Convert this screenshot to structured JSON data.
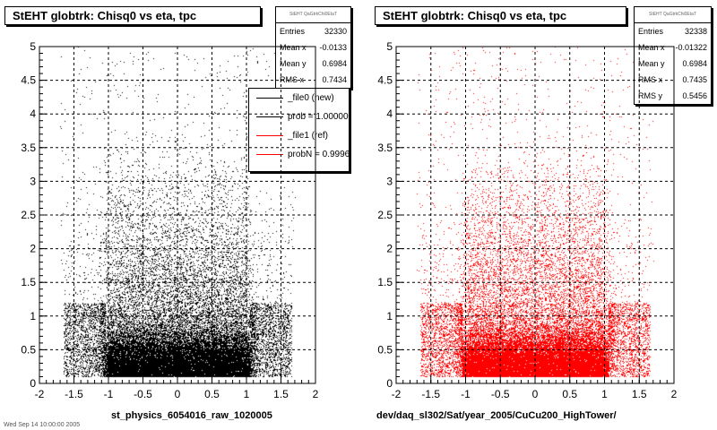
{
  "chart_data": [
    {
      "type": "scatter",
      "title": "StEHT globtrk: Chisq0 vs eta, tpc",
      "xlabel": "st_physics_6054016_raw_1020005",
      "ylabel": "",
      "xlim": [
        -2,
        2
      ],
      "ylim": [
        0,
        5
      ],
      "x_ticks": [
        "-2",
        "-1.5",
        "-1",
        "-0.5",
        "0",
        "0.5",
        "1",
        "1.5",
        "2"
      ],
      "y_ticks": [
        "0",
        "0.5",
        "1",
        "1.5",
        "2",
        "2.5",
        "3",
        "3.5",
        "4",
        "4.5",
        "5"
      ],
      "grid": true,
      "marker_color": "#000000",
      "stats": {
        "header": "StEHT QaGtrkChi0EtaT",
        "rows": [
          {
            "label": "Entries",
            "value": "32330"
          },
          {
            "label": "Mean x",
            "value": "-0.0133"
          },
          {
            "label": "Mean y",
            "value": "0.6984"
          },
          {
            "label": "RMS x",
            "value": "0.7434"
          }
        ]
      },
      "legend": {
        "placement": "top-right",
        "entries": [
          {
            "label": "_file0 (new)",
            "color": "#000000"
          },
          {
            "label": "prob = 1.000000",
            "color": "#000000"
          },
          {
            "label": "_file1 (ref)",
            "color": "#ff0000"
          },
          {
            "label": "probN = 0.999681",
            "color": "#ff0000"
          }
        ]
      }
    },
    {
      "type": "scatter",
      "title": "StEHT globtrk: Chisq0 vs eta, tpc",
      "xlabel": "dev/daq_sl302/Sat/year_2005/CuCu200_HighTower/",
      "ylabel": "",
      "xlim": [
        -2,
        2
      ],
      "ylim": [
        0,
        5
      ],
      "x_ticks": [
        "-2",
        "-1.5",
        "-1",
        "-0.5",
        "0",
        "0.5",
        "1",
        "1.5",
        "2"
      ],
      "y_ticks": [
        "0",
        "0.5",
        "1",
        "1.5",
        "2",
        "2.5",
        "3",
        "3.5",
        "4",
        "4.5",
        "5"
      ],
      "grid": true,
      "marker_color": "#ff0000",
      "stats": {
        "header": "StEHT QaGtrkChi0EtaT",
        "rows": [
          {
            "label": "Entries",
            "value": "32338"
          },
          {
            "label": "Mean x",
            "value": "-0.01322"
          },
          {
            "label": "Mean y",
            "value": "0.6984"
          },
          {
            "label": "RMS x",
            "value": "0.7435"
          },
          {
            "label": "RMS y",
            "value": "0.5456"
          }
        ]
      }
    }
  ],
  "footer_text": "Wed Sep 14 10:00:00 2005"
}
